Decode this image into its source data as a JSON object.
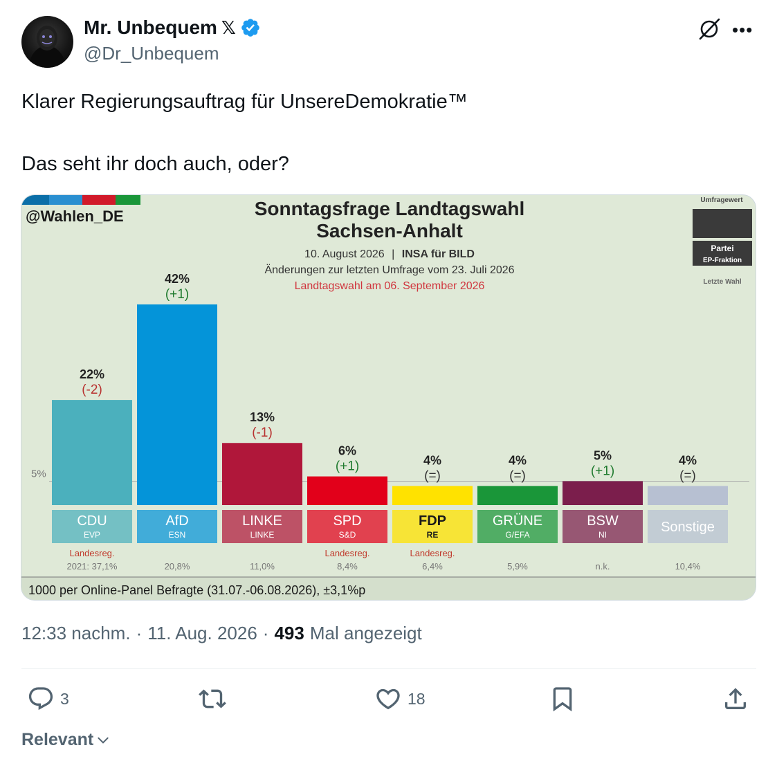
{
  "author": {
    "display_name": "Mr. Unbequem",
    "x_logo": "𝕏",
    "handle": "@Dr_Unbequem",
    "verified_color": "#1d9bf0"
  },
  "tweet": {
    "line1": "Klarer Regierungsauftrag für UnsereDemokratie™",
    "line2": "Das seht ihr doch auch, oder?"
  },
  "chart_data": {
    "type": "bar",
    "source_tag": "@Wahlen_DE",
    "title_line1": "Sonntagsfrage Landtagswahl",
    "title_line2": "Sachsen-Anhalt",
    "date": "10. August 2026",
    "separator": "|",
    "institute": "INSA für BILD",
    "changes_note": "Änderungen zur letzten Umfrage vom 23. Juli 2026",
    "election_note": "Landtagswahl am 06. September 2026",
    "legend": {
      "top": "Umfragewert",
      "party": "Partei",
      "ep": "EP-Fraktion",
      "last": "Letzte Wahl"
    },
    "threshold_label": "5%",
    "threshold_value": 5,
    "ymax": 42,
    "categories": [
      "CDU",
      "AfD",
      "LINKE",
      "SPD",
      "FDP",
      "GRÜNE",
      "BSW",
      "Sonstige"
    ],
    "ep_groups": [
      "EVP",
      "ESN",
      "LINKE",
      "S&D",
      "RE",
      "G/EFA",
      "NI",
      ""
    ],
    "values": [
      22,
      42,
      13,
      6,
      4,
      4,
      5,
      4
    ],
    "value_labels": [
      "22%",
      "42%",
      "13%",
      "6%",
      "4%",
      "4%",
      "5%",
      "4%"
    ],
    "changes": [
      "(-2)",
      "(+1)",
      "(-1)",
      "(+1)",
      "(=)",
      "(=)",
      "(+1)",
      "(=)"
    ],
    "status_notes": [
      "Landesreg.",
      "",
      "",
      "Landesreg.",
      "Landesreg.",
      "",
      "",
      ""
    ],
    "last_election": [
      "2021: 37,1%",
      "20,8%",
      "11,0%",
      "8,4%",
      "6,4%",
      "5,9%",
      "n.k.",
      "10,4%"
    ],
    "colors": [
      "#4bb0bd",
      "#0494d9",
      "#b0173a",
      "#e2001a",
      "#ffe200",
      "#1a9639",
      "#7b1e4c",
      "#b7c0d2"
    ],
    "footer": "1000 per Online-Panel Befragte (31.07.-06.08.2026), ±3,1%p"
  },
  "footer": {
    "time": "12:33 nachm.",
    "dot1": "·",
    "date": "11. Aug. 2026",
    "dot2": "·",
    "views_count": "493",
    "views_label": "Mal angezeigt"
  },
  "actions": {
    "reply_count": "3",
    "like_count": "18"
  },
  "sort": {
    "label": "Relevant"
  }
}
